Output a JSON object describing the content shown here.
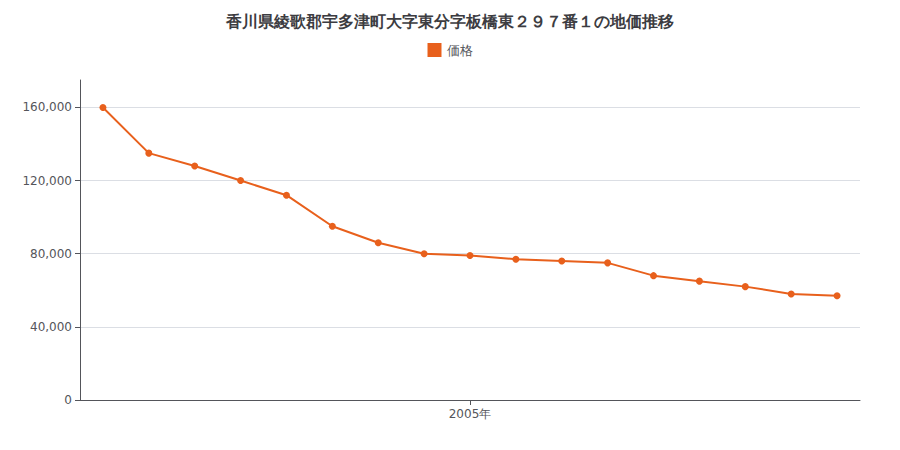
{
  "chart_data": {
    "type": "line",
    "title": "香川県綾歌郡宇多津町大字東分字板橋東２９７番１の地価推移",
    "x": [
      1997,
      1998,
      1999,
      2000,
      2001,
      2002,
      2003,
      2004,
      2005,
      2006,
      2007,
      2008,
      2009,
      2010,
      2011,
      2012,
      2013
    ],
    "series": [
      {
        "name": "価格",
        "color": "#e8601c",
        "marker": "circle",
        "values": [
          160000,
          135000,
          128000,
          120000,
          112000,
          95000,
          86000,
          80000,
          79000,
          77000,
          76000,
          75000,
          68000,
          65000,
          62000,
          58000,
          57000
        ]
      }
    ],
    "xlim": [
      1996.5,
      2013.5
    ],
    "xticks": [
      {
        "value": 2005,
        "label": "2005年"
      }
    ],
    "ylim": [
      0,
      175000
    ],
    "yticks": [
      0,
      {
        "value": 40000,
        "label": "40,000"
      },
      {
        "value": 80000,
        "label": "80,000"
      },
      {
        "value": 120000,
        "label": "120,000"
      },
      {
        "value": 160000,
        "label": "160,000"
      }
    ],
    "grid": true,
    "legend": "top"
  }
}
